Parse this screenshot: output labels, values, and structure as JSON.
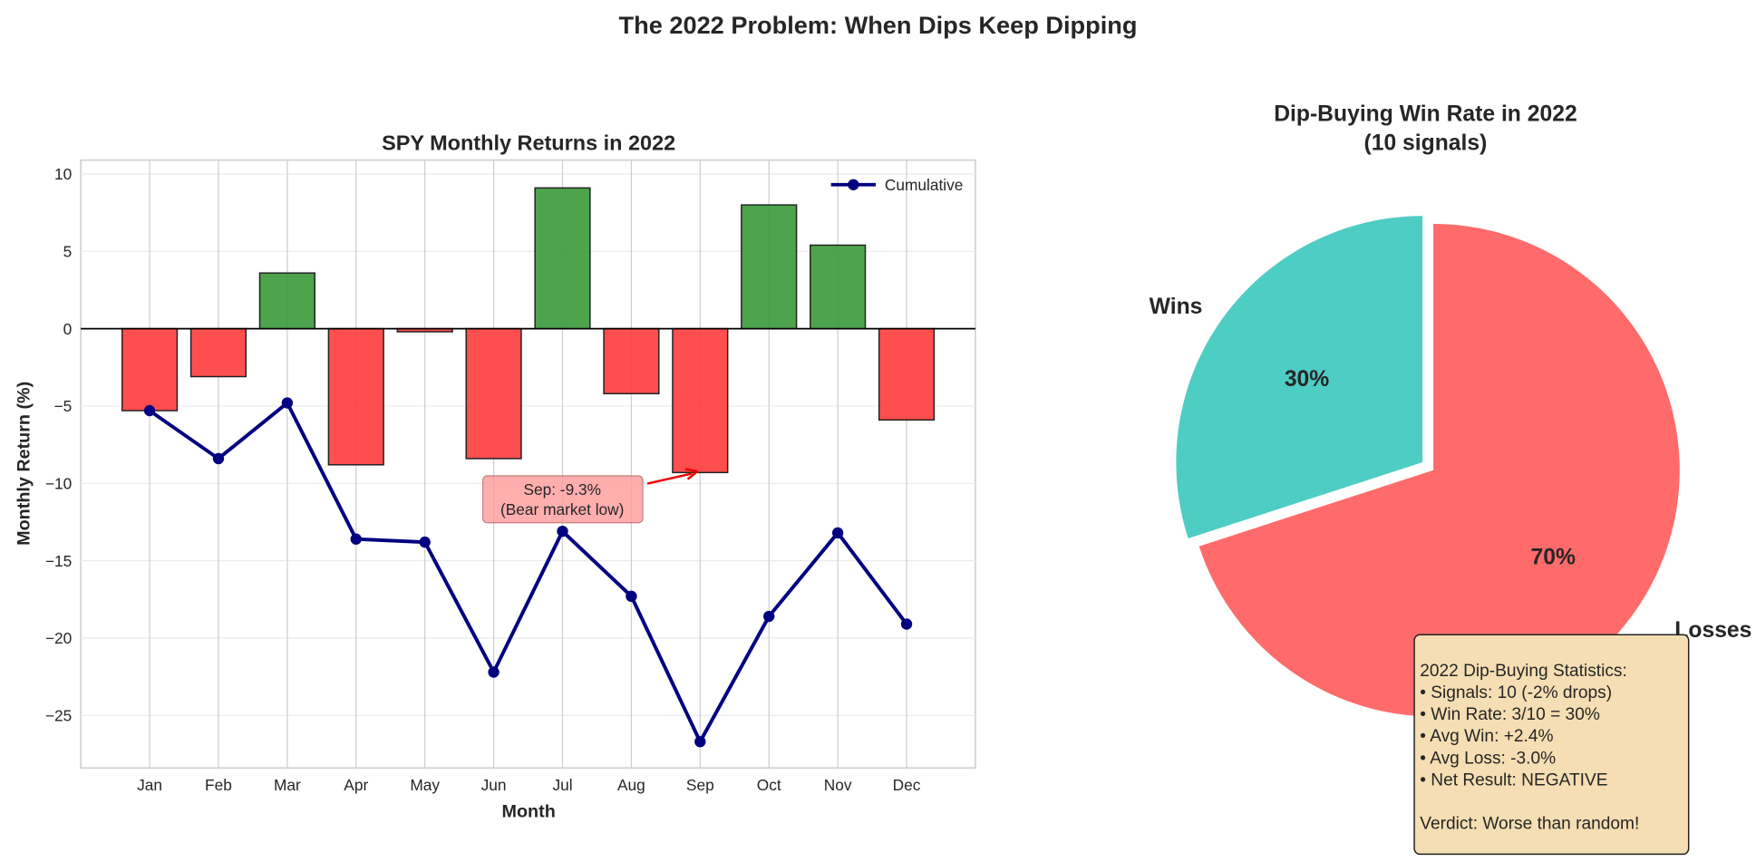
{
  "suptitle": "The 2022 Problem: When Dips Keep Dipping",
  "chart_data": [
    {
      "type": "bar",
      "title": "SPY Monthly Returns in 2022",
      "xlabel": "Month",
      "ylabel": "Monthly Return (%)",
      "categories": [
        "Jan",
        "Feb",
        "Mar",
        "Apr",
        "May",
        "Jun",
        "Jul",
        "Aug",
        "Sep",
        "Oct",
        "Nov",
        "Dec"
      ],
      "series": [
        {
          "values": [
            -5.3,
            -3.1,
            3.6,
            -8.8,
            -0.2,
            -8.4,
            9.1,
            -4.2,
            -9.3,
            8.0,
            5.4,
            -5.9
          ],
          "colors": {
            "positive": "#3a9a3a",
            "negative": "#ff3b3b"
          }
        },
        {
          "name": "Cumulative",
          "type": "line",
          "values": [
            -5.3,
            -8.4,
            -4.8,
            -13.6,
            -13.8,
            -22.2,
            -13.1,
            -17.3,
            -26.7,
            -18.6,
            -13.2,
            -19.1
          ],
          "color": "#000080"
        }
      ],
      "yticks": [
        10,
        5,
        0,
        -5,
        -10,
        -15,
        -20,
        -25
      ],
      "ylim": [
        -28.4,
        10.9
      ],
      "grid": true,
      "legend": "top-right",
      "annotation": {
        "line1": "Sep: -9.3%",
        "line2": "(Bear market low)",
        "target": {
          "x": "Sep",
          "y": -9.3
        }
      }
    },
    {
      "type": "pie",
      "title_line1": "Dip-Buying Win Rate in 2022",
      "title_line2": "(10 signals)",
      "slices": [
        {
          "label": "Wins",
          "value": 30,
          "pct_label": "30%",
          "color": "#4ecdc4"
        },
        {
          "label": "Losses",
          "value": 70,
          "pct_label": "70%",
          "color": "#ff6b6b"
        }
      ]
    }
  ],
  "stats_box": {
    "lines": [
      "2022 Dip-Buying Statistics:",
      "• Signals: 10 (-2% drops)",
      "• Win Rate: 3/10 = 30%",
      "• Avg Win: +2.4%",
      "• Avg Loss: -3.0%",
      "• Net Result: NEGATIVE",
      "",
      "Verdict: Worse than random!"
    ]
  }
}
